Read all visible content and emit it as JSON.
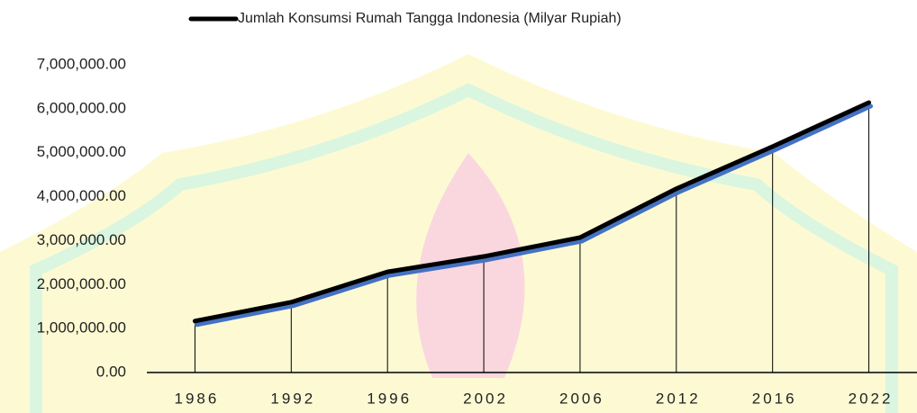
{
  "chart_data": {
    "type": "line",
    "categories": [
      "1986",
      "1992",
      "1996",
      "2002",
      "2006",
      "2012",
      "2016",
      "2022"
    ],
    "series": [
      {
        "name": "Jumlah Konsumsi Rumah Tangga Indonesia (Milyar Rupiah)",
        "color": "#000000",
        "shadow_color": "#4472c4",
        "values": [
          1170000,
          1600000,
          2290000,
          2640000,
          3070000,
          4180000,
          5140000,
          6140000
        ]
      }
    ],
    "ylim": [
      0,
      7000000
    ],
    "yticks": [
      {
        "value": 0,
        "label": "0.00"
      },
      {
        "value": 1000000,
        "label": "1,000,000.00"
      },
      {
        "value": 2000000,
        "label": "2,000,000.00"
      },
      {
        "value": 3000000,
        "label": "3,000,000.00"
      },
      {
        "value": 4000000,
        "label": "4,000,000.00"
      },
      {
        "value": 5000000,
        "label": "5,000,000.00"
      },
      {
        "value": 6000000,
        "label": "6,000,000.00"
      },
      {
        "value": 7000000,
        "label": "7,000,000.00"
      }
    ],
    "drop_lines": true,
    "legend": "top"
  }
}
